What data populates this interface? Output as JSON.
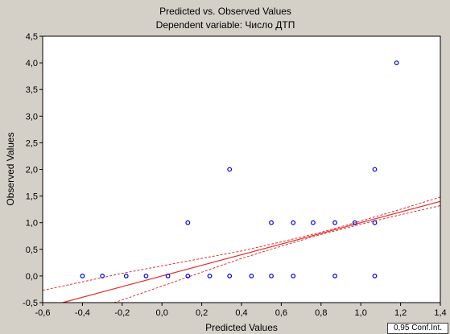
{
  "chart_data": {
    "type": "scatter",
    "title": "Predicted vs. Observed Values",
    "subtitle": "Dependent variable: Число ДТП",
    "xlabel": "Predicted Values",
    "ylabel": "Observed Values",
    "xlim": [
      -0.6,
      1.4
    ],
    "ylim": [
      -0.5,
      4.5
    ],
    "xticks": [
      "-0,6",
      "-0,4",
      "-0,2",
      "0,0",
      "0,2",
      "0,4",
      "0,6",
      "0,8",
      "1,0",
      "1,2",
      "1,4"
    ],
    "yticks": [
      "-0,5",
      "0,0",
      "0,5",
      "1,0",
      "1,5",
      "2,0",
      "2,5",
      "3,0",
      "3,5",
      "4,0",
      "4,5"
    ],
    "grid": false,
    "legend_text": "0,95 Conf.Int.",
    "colors": {
      "points": "#0000cc",
      "fit_line": "#e03030",
      "plot_bg": "#ffffff",
      "frame_bg": "#d4d0c8"
    },
    "fit_line": {
      "slope": 1.0,
      "intercept": 0.0
    },
    "confidence_band": {
      "x": [
        -0.6,
        -0.4,
        -0.2,
        0.0,
        0.2,
        0.4,
        0.6,
        0.8,
        1.0,
        1.2,
        1.4
      ],
      "upper": [
        -0.27,
        -0.11,
        0.05,
        0.19,
        0.33,
        0.47,
        0.64,
        0.82,
        1.03,
        1.25,
        1.48
      ],
      "lower": [
        -0.93,
        -0.69,
        -0.45,
        -0.19,
        0.07,
        0.33,
        0.56,
        0.78,
        0.97,
        1.15,
        1.32
      ]
    },
    "points": [
      {
        "x": -0.4,
        "y": 0
      },
      {
        "x": -0.3,
        "y": 0
      },
      {
        "x": -0.18,
        "y": 0
      },
      {
        "x": -0.08,
        "y": 0
      },
      {
        "x": 0.03,
        "y": 0
      },
      {
        "x": 0.13,
        "y": 0
      },
      {
        "x": 0.13,
        "y": 1
      },
      {
        "x": 0.24,
        "y": 0
      },
      {
        "x": 0.34,
        "y": 0
      },
      {
        "x": 0.34,
        "y": 2
      },
      {
        "x": 0.45,
        "y": 0
      },
      {
        "x": 0.55,
        "y": 0
      },
      {
        "x": 0.55,
        "y": 1
      },
      {
        "x": 0.66,
        "y": 0
      },
      {
        "x": 0.66,
        "y": 1
      },
      {
        "x": 0.76,
        "y": 1
      },
      {
        "x": 0.87,
        "y": 0
      },
      {
        "x": 0.87,
        "y": 1
      },
      {
        "x": 0.97,
        "y": 1
      },
      {
        "x": 1.07,
        "y": 0
      },
      {
        "x": 1.07,
        "y": 1
      },
      {
        "x": 1.07,
        "y": 2
      },
      {
        "x": 1.18,
        "y": 4
      }
    ]
  }
}
